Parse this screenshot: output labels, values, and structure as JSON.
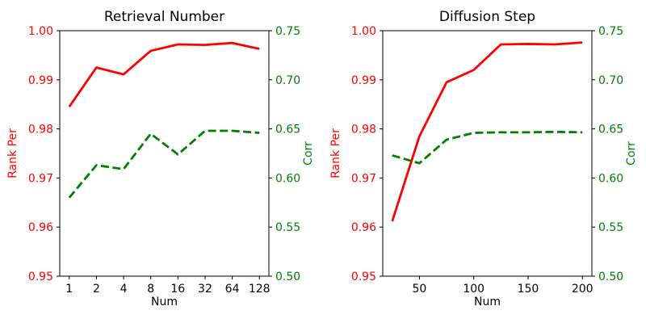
{
  "figure": {
    "background": "#ffffff",
    "spine_color": "#000000",
    "tick_text_color": "#000000"
  },
  "chart_data": [
    {
      "type": "line",
      "title": "Retrieval Number",
      "xlabel": "Num",
      "xscale": "log2",
      "xlim": [
        -0.35,
        7.35
      ],
      "grid": false,
      "xticks": [
        {
          "v": 1,
          "label": "1"
        },
        {
          "v": 2,
          "label": "2"
        },
        {
          "v": 4,
          "label": "4"
        },
        {
          "v": 8,
          "label": "8"
        },
        {
          "v": 16,
          "label": "16"
        },
        {
          "v": 32,
          "label": "32"
        },
        {
          "v": 64,
          "label": "64"
        },
        {
          "v": 128,
          "label": "128"
        }
      ],
      "axes": {
        "left": {
          "label": "Rank Per",
          "color": "#ff0000",
          "min": 0.95,
          "max": 1.0,
          "ticks": [
            {
              "v": 1.0,
              "label": "1.00"
            },
            {
              "v": 0.99,
              "label": "0.99"
            },
            {
              "v": 0.98,
              "label": "0.98"
            },
            {
              "v": 0.97,
              "label": "0.97"
            },
            {
              "v": 0.96,
              "label": "0.96"
            },
            {
              "v": 0.95,
              "label": "0.95"
            }
          ]
        },
        "right": {
          "label": "Corr",
          "color": "#008000",
          "min": 0.5,
          "max": 0.75,
          "ticks": [
            {
              "v": 0.75,
              "label": "0.75"
            },
            {
              "v": 0.7,
              "label": "0.70"
            },
            {
              "v": 0.65,
              "label": "0.65"
            },
            {
              "v": 0.6,
              "label": "0.60"
            },
            {
              "v": 0.55,
              "label": "0.55"
            },
            {
              "v": 0.5,
              "label": "0.50"
            }
          ]
        }
      },
      "series": [
        {
          "name": "Rank Per",
          "axis": "left",
          "color": "#ff0000",
          "style": "solid",
          "x": [
            1,
            2,
            4,
            8,
            16,
            32,
            64,
            128
          ],
          "y": [
            0.9845,
            0.9925,
            0.9911,
            0.9959,
            0.9972,
            0.9971,
            0.9975,
            0.9963
          ]
        },
        {
          "name": "Corr",
          "axis": "right",
          "color": "#008000",
          "style": "dashed",
          "x": [
            1,
            2,
            4,
            8,
            16,
            32,
            64,
            128
          ],
          "y": [
            0.58,
            0.613,
            0.609,
            0.645,
            0.624,
            0.648,
            0.648,
            0.646
          ]
        }
      ]
    },
    {
      "type": "line",
      "title": "Diffusion Step",
      "xlabel": "Num",
      "xscale": "linear",
      "xlim": [
        16.25,
        208.75
      ],
      "grid": false,
      "xticks": [
        {
          "v": 50,
          "label": "50"
        },
        {
          "v": 100,
          "label": "100"
        },
        {
          "v": 150,
          "label": "150"
        },
        {
          "v": 200,
          "label": "200"
        }
      ],
      "axes": {
        "left": {
          "label": "Rank Per",
          "color": "#ff0000",
          "min": 0.95,
          "max": 1.0,
          "ticks": [
            {
              "v": 1.0,
              "label": "1.00"
            },
            {
              "v": 0.99,
              "label": "0.99"
            },
            {
              "v": 0.98,
              "label": "0.98"
            },
            {
              "v": 0.97,
              "label": "0.97"
            },
            {
              "v": 0.96,
              "label": "0.96"
            },
            {
              "v": 0.95,
              "label": "0.95"
            }
          ]
        },
        "right": {
          "label": "Corr",
          "color": "#008000",
          "min": 0.5,
          "max": 0.75,
          "ticks": [
            {
              "v": 0.75,
              "label": "0.75"
            },
            {
              "v": 0.7,
              "label": "0.70"
            },
            {
              "v": 0.65,
              "label": "0.65"
            },
            {
              "v": 0.6,
              "label": "0.60"
            },
            {
              "v": 0.55,
              "label": "0.55"
            },
            {
              "v": 0.5,
              "label": "0.50"
            }
          ]
        }
      },
      "series": [
        {
          "name": "Rank Per",
          "axis": "left",
          "color": "#ff0000",
          "style": "solid",
          "x": [
            25,
            50,
            75,
            100,
            125,
            150,
            175,
            200
          ],
          "y": [
            0.9612,
            0.9785,
            0.9895,
            0.992,
            0.9972,
            0.9973,
            0.9972,
            0.9976
          ]
        },
        {
          "name": "Corr",
          "axis": "right",
          "color": "#008000",
          "style": "dashed",
          "x": [
            25,
            50,
            75,
            100,
            125,
            150,
            175,
            200
          ],
          "y": [
            0.623,
            0.615,
            0.639,
            0.646,
            0.6465,
            0.6465,
            0.647,
            0.6465
          ]
        }
      ]
    }
  ]
}
